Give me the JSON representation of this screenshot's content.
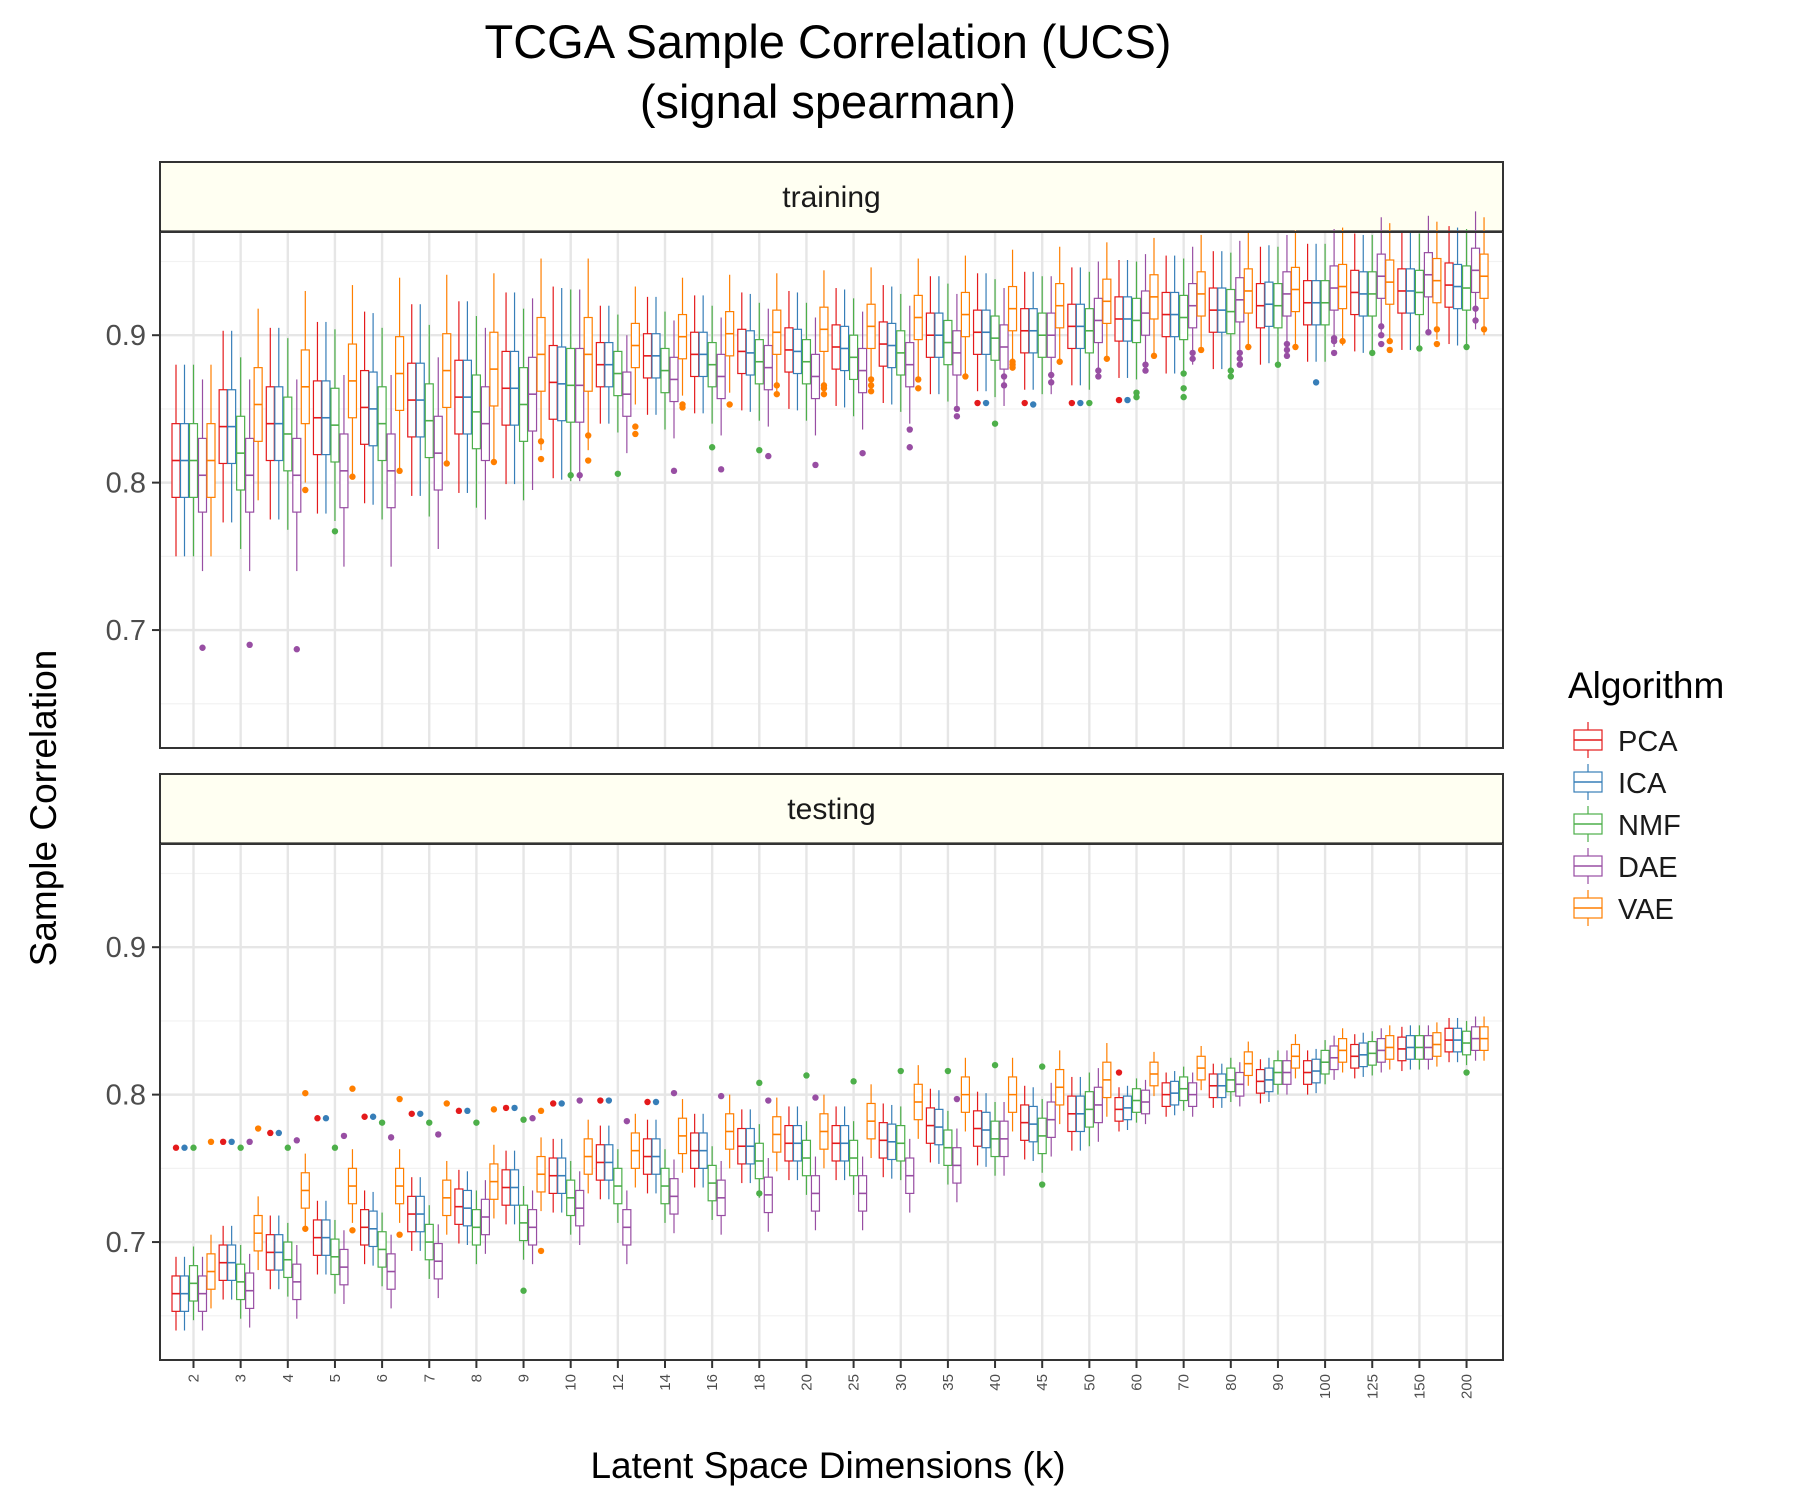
{
  "chart_data": {
    "type": "boxplot",
    "title": [
      "TCGA Sample Correlation (UCS)",
      "(signal spearman)"
    ],
    "xlabel": "Latent Space Dimensions (k)",
    "ylabel": "Sample Correlation",
    "ylim": [
      0.62,
      0.97
    ],
    "yticks": [
      0.7,
      0.8,
      0.9
    ],
    "yticks_labels": [
      "0.7",
      "0.8",
      "0.9"
    ],
    "categories": [
      "2",
      "3",
      "4",
      "5",
      "6",
      "7",
      "8",
      "9",
      "10",
      "12",
      "14",
      "16",
      "18",
      "20",
      "25",
      "30",
      "35",
      "40",
      "45",
      "50",
      "60",
      "70",
      "80",
      "90",
      "100",
      "125",
      "150",
      "200"
    ],
    "grid": true,
    "legend": {
      "title": "Algorithm",
      "placement": "right",
      "entries": [
        "PCA",
        "ICA",
        "NMF",
        "DAE",
        "VAE"
      ]
    },
    "colors": {
      "PCA": "#e41a1c",
      "ICA": "#377eb8",
      "NMF": "#4daf4a",
      "DAE": "#984ea3",
      "VAE": "#ff7f00"
    },
    "panels": [
      {
        "label": "training",
        "series": [
          {
            "name": "PCA",
            "median": [
              0.815,
              0.838,
              0.84,
              0.844,
              0.851,
              0.856,
              0.858,
              0.864,
              0.868,
              0.88,
              0.886,
              0.887,
              0.889,
              0.89,
              0.892,
              0.894,
              0.9,
              0.902,
              0.903,
              0.906,
              0.911,
              0.914,
              0.917,
              0.92,
              0.922,
              0.929,
              0.93,
              0.934
            ],
            "outliers": [
              [],
              [],
              [],
              [],
              [],
              [],
              [],
              [],
              [],
              [],
              [],
              [],
              [],
              [],
              [],
              [],
              [],
              [
                0.854
              ],
              [
                0.854
              ],
              [
                0.854
              ],
              [
                0.856
              ],
              [],
              [],
              [],
              [],
              [],
              [],
              []
            ]
          },
          {
            "name": "ICA",
            "median": [
              0.815,
              0.838,
              0.84,
              0.844,
              0.85,
              0.856,
              0.858,
              0.864,
              0.867,
              0.88,
              0.886,
              0.887,
              0.888,
              0.889,
              0.891,
              0.893,
              0.9,
              0.902,
              0.903,
              0.906,
              0.911,
              0.914,
              0.917,
              0.921,
              0.922,
              0.928,
              0.93,
              0.933
            ],
            "outliers": [
              [],
              [],
              [],
              [],
              [],
              [],
              [],
              [],
              [],
              [],
              [],
              [],
              [],
              [],
              [],
              [],
              [],
              [
                0.854
              ],
              [
                0.853
              ],
              [
                0.854
              ],
              [
                0.856
              ],
              [],
              [],
              [],
              [
                0.868
              ],
              [],
              [],
              []
            ]
          },
          {
            "name": "NMF",
            "median": [
              0.815,
              0.82,
              0.833,
              0.839,
              0.84,
              0.842,
              0.848,
              0.853,
              0.866,
              0.874,
              0.876,
              0.88,
              0.882,
              0.882,
              0.885,
              0.888,
              0.895,
              0.898,
              0.9,
              0.903,
              0.91,
              0.912,
              0.916,
              0.92,
              0.922,
              0.928,
              0.929,
              0.932
            ],
            "outliers": [
              [],
              [],
              [],
              [
                0.767
              ],
              [],
              [],
              [],
              [],
              [
                0.805
              ],
              [
                0.806
              ],
              [],
              [
                0.824
              ],
              [
                0.822
              ],
              [],
              [],
              [],
              [],
              [
                0.84
              ],
              [],
              [
                0.854
              ],
              [
                0.858,
                0.861
              ],
              [
                0.858,
                0.864,
                0.874
              ],
              [
                0.872,
                0.876
              ],
              [
                0.88
              ],
              [],
              [
                0.888
              ],
              [
                0.891
              ],
              [
                0.892
              ]
            ]
          },
          {
            "name": "DAE",
            "median": [
              0.805,
              0.805,
              0.805,
              0.808,
              0.808,
              0.82,
              0.84,
              0.86,
              0.866,
              0.86,
              0.87,
              0.872,
              0.878,
              0.872,
              0.876,
              0.88,
              0.888,
              0.892,
              0.9,
              0.91,
              0.915,
              0.92,
              0.924,
              0.928,
              0.932,
              0.94,
              0.941,
              0.944
            ],
            "outliers": [
              [
                0.688
              ],
              [
                0.69
              ],
              [
                0.687
              ],
              [],
              [],
              [],
              [],
              [],
              [
                0.805
              ],
              [],
              [
                0.808
              ],
              [
                0.809
              ],
              [
                0.818
              ],
              [
                0.812
              ],
              [
                0.82
              ],
              [
                0.824,
                0.836
              ],
              [
                0.845,
                0.85
              ],
              [
                0.866,
                0.872
              ],
              [
                0.868,
                0.873
              ],
              [
                0.872,
                0.876
              ],
              [
                0.876,
                0.88
              ],
              [
                0.884,
                0.888
              ],
              [
                0.88,
                0.884,
                0.888
              ],
              [
                0.886,
                0.89,
                0.894
              ],
              [
                0.888,
                0.896,
                0.898
              ],
              [
                0.894,
                0.9,
                0.906
              ],
              [
                0.902
              ],
              [
                0.91,
                0.918
              ]
            ]
          },
          {
            "name": "VAE",
            "median": [
              0.815,
              0.853,
              0.865,
              0.869,
              0.874,
              0.876,
              0.877,
              0.887,
              0.887,
              0.893,
              0.899,
              0.901,
              0.902,
              0.904,
              0.906,
              0.912,
              0.914,
              0.918,
              0.92,
              0.923,
              0.926,
              0.928,
              0.93,
              0.931,
              0.933,
              0.936,
              0.937,
              0.94
            ],
            "outliers": [
              [],
              [],
              [
                0.795
              ],
              [
                0.804
              ],
              [
                0.808
              ],
              [
                0.813
              ],
              [
                0.814
              ],
              [
                0.816,
                0.828
              ],
              [
                0.815,
                0.832
              ],
              [
                0.833,
                0.838
              ],
              [
                0.851,
                0.853
              ],
              [
                0.853
              ],
              [
                0.86,
                0.866
              ],
              [
                0.86,
                0.864,
                0.866
              ],
              [
                0.862,
                0.866,
                0.87
              ],
              [
                0.864,
                0.87
              ],
              [
                0.872
              ],
              [
                0.878,
                0.88,
                0.882
              ],
              [
                0.882
              ],
              [
                0.884
              ],
              [
                0.886
              ],
              [
                0.89
              ],
              [
                0.892
              ],
              [
                0.892
              ],
              [
                0.896
              ],
              [
                0.89,
                0.896
              ],
              [
                0.894,
                0.904
              ],
              [
                0.904
              ]
            ]
          }
        ]
      },
      {
        "label": "testing",
        "series": [
          {
            "name": "PCA",
            "median": [
              0.665,
              0.686,
              0.693,
              0.703,
              0.71,
              0.719,
              0.724,
              0.737,
              0.745,
              0.754,
              0.758,
              0.762,
              0.765,
              0.767,
              0.767,
              0.769,
              0.779,
              0.777,
              0.781,
              0.787,
              0.79,
              0.8,
              0.806,
              0.809,
              0.815,
              0.826,
              0.831,
              0.837
            ],
            "outliers": [
              [
                0.764
              ],
              [
                0.768
              ],
              [
                0.774
              ],
              [
                0.784
              ],
              [
                0.785
              ],
              [
                0.787
              ],
              [
                0.789
              ],
              [
                0.791
              ],
              [
                0.794
              ],
              [
                0.796
              ],
              [
                0.795
              ],
              [],
              [],
              [],
              [],
              [],
              [],
              [],
              [],
              [],
              [
                0.815
              ],
              [],
              [],
              [],
              [],
              [],
              [],
              []
            ]
          },
          {
            "name": "ICA",
            "median": [
              0.665,
              0.686,
              0.693,
              0.703,
              0.709,
              0.719,
              0.723,
              0.737,
              0.745,
              0.754,
              0.758,
              0.762,
              0.765,
              0.767,
              0.767,
              0.768,
              0.778,
              0.776,
              0.78,
              0.787,
              0.791,
              0.801,
              0.806,
              0.81,
              0.816,
              0.827,
              0.832,
              0.837
            ],
            "outliers": [
              [
                0.764
              ],
              [
                0.768
              ],
              [
                0.774
              ],
              [
                0.784
              ],
              [
                0.785
              ],
              [
                0.787
              ],
              [
                0.789
              ],
              [
                0.791
              ],
              [
                0.794
              ],
              [
                0.796
              ],
              [
                0.795
              ],
              [],
              [],
              [],
              [],
              [],
              [],
              [],
              [],
              [],
              [],
              [],
              [],
              [],
              [],
              [],
              [],
              []
            ]
          },
          {
            "name": "NMF",
            "median": [
              0.672,
              0.673,
              0.688,
              0.69,
              0.695,
              0.7,
              0.71,
              0.713,
              0.73,
              0.738,
              0.738,
              0.74,
              0.755,
              0.757,
              0.757,
              0.767,
              0.764,
              0.77,
              0.772,
              0.79,
              0.796,
              0.804,
              0.81,
              0.815,
              0.822,
              0.828,
              0.832,
              0.835
            ],
            "outliers": [
              [
                0.764
              ],
              [
                0.764
              ],
              [
                0.764
              ],
              [
                0.764
              ],
              [
                0.781
              ],
              [
                0.781
              ],
              [
                0.781
              ],
              [
                0.667,
                0.783
              ],
              [],
              [],
              [],
              [],
              [
                0.733,
                0.808
              ],
              [
                0.813
              ],
              [
                0.809
              ],
              [
                0.816
              ],
              [
                0.816
              ],
              [
                0.82
              ],
              [
                0.739,
                0.819
              ],
              [],
              [],
              [],
              [],
              [],
              [],
              [],
              [],
              [
                0.815
              ]
            ]
          },
          {
            "name": "DAE",
            "median": [
              0.665,
              0.667,
              0.673,
              0.683,
              0.68,
              0.687,
              0.717,
              0.71,
              0.723,
              0.71,
              0.731,
              0.73,
              0.732,
              0.733,
              0.733,
              0.745,
              0.752,
              0.77,
              0.783,
              0.793,
              0.795,
              0.8,
              0.807,
              0.815,
              0.825,
              0.83,
              0.832,
              0.838
            ],
            "outliers": [
              [],
              [
                0.768
              ],
              [
                0.769
              ],
              [
                0.772
              ],
              [
                0.771
              ],
              [
                0.773
              ],
              [],
              [
                0.784
              ],
              [
                0.796
              ],
              [
                0.782
              ],
              [
                0.801
              ],
              [
                0.799
              ],
              [
                0.796
              ],
              [
                0.798
              ],
              [],
              [],
              [
                0.797
              ],
              [],
              [],
              [],
              [],
              [],
              [],
              [],
              [],
              [],
              [],
              []
            ]
          },
          {
            "name": "VAE",
            "median": [
              0.68,
              0.706,
              0.735,
              0.738,
              0.738,
              0.73,
              0.741,
              0.746,
              0.758,
              0.762,
              0.772,
              0.775,
              0.773,
              0.775,
              0.782,
              0.795,
              0.8,
              0.8,
              0.805,
              0.81,
              0.814,
              0.818,
              0.821,
              0.826,
              0.83,
              0.832,
              0.834,
              0.838
            ],
            "outliers": [
              [
                0.768
              ],
              [
                0.777
              ],
              [
                0.709,
                0.801
              ],
              [
                0.708,
                0.804
              ],
              [
                0.705,
                0.797
              ],
              [
                0.794
              ],
              [
                0.79
              ],
              [
                0.694,
                0.789
              ],
              [],
              [],
              [],
              [],
              [],
              [],
              [],
              [],
              [],
              [],
              [],
              [],
              [],
              [],
              [],
              [],
              [],
              [],
              [],
              []
            ]
          }
        ]
      }
    ]
  }
}
